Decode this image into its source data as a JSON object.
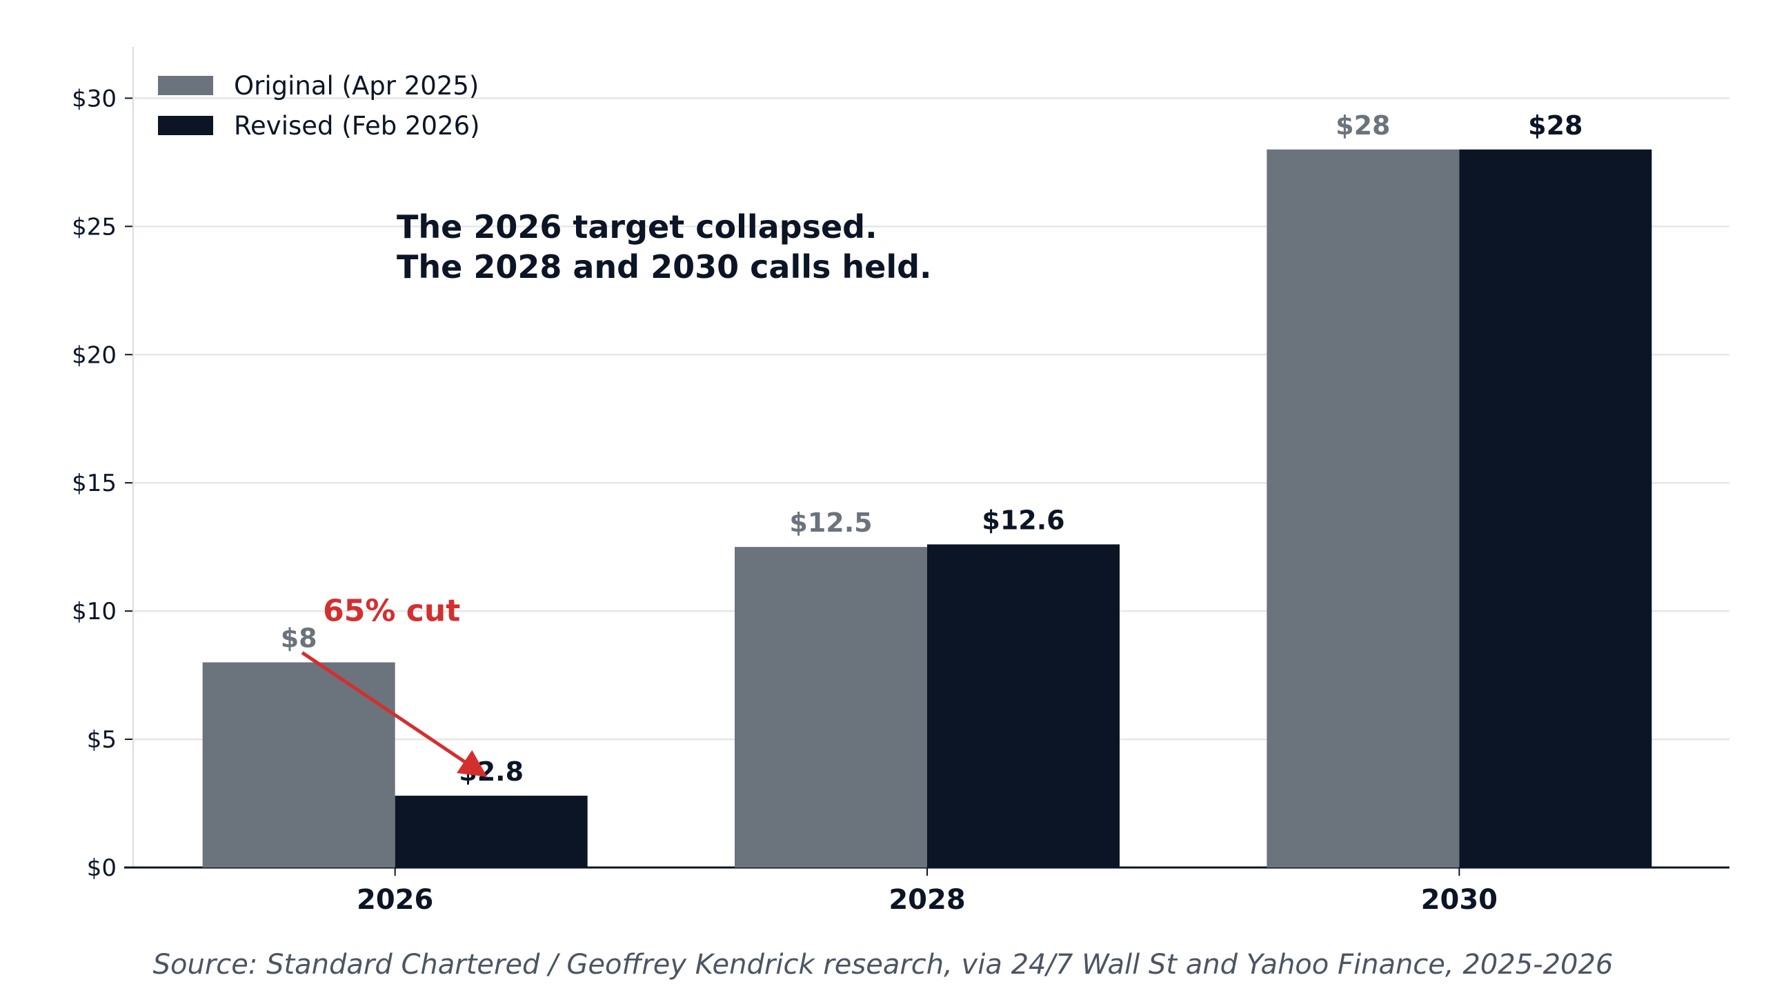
{
  "chart_data": {
    "type": "bar",
    "title": "",
    "xlabel": "",
    "ylabel": "",
    "categories": [
      "2026",
      "2028",
      "2030"
    ],
    "series": [
      {
        "name": "Original (Apr 2025)",
        "values": [
          8,
          12.5,
          28
        ],
        "value_labels": [
          "$8",
          "$12.5",
          "$28"
        ],
        "color": "#6b737d"
      },
      {
        "name": "Revised (Feb 2026)",
        "values": [
          2.8,
          12.6,
          28
        ],
        "value_labels": [
          "$2.8",
          "$12.6",
          "$28"
        ],
        "color": "#0b1526"
      }
    ],
    "ylim": [
      0,
      32
    ],
    "y_ticks": [
      0,
      5,
      10,
      15,
      20,
      25,
      30
    ],
    "y_tick_labels": [
      "$0",
      "$5",
      "$10",
      "$15",
      "$20",
      "$25",
      "$30"
    ],
    "grid": "horizontal",
    "legend_position": "top-left",
    "annotations": {
      "headline_lines": [
        "The 2026 target collapsed.",
        "The 2028 and 2030 calls held."
      ],
      "cut_label": "65% cut",
      "cut_color": "#d32f2f",
      "cut_arrow": {
        "category": "2026",
        "from_series": 0,
        "to_series": 1
      }
    },
    "source": "Source: Standard Chartered / Geoffrey Kendrick research, via 24/7 Wall St and Yahoo Finance, 2025-2026"
  }
}
